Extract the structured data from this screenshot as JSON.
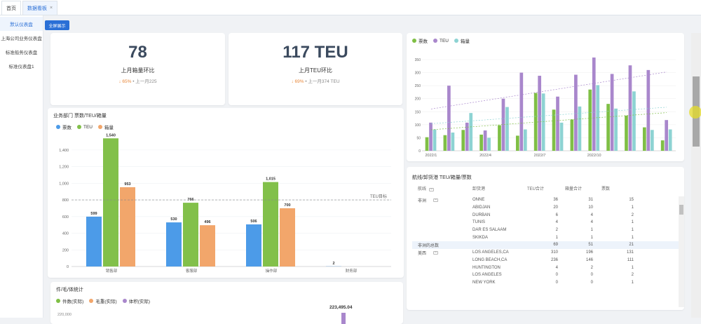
{
  "tabs": [
    {
      "label": "首页"
    },
    {
      "label": "数据看板",
      "close": "×"
    }
  ],
  "sidebar": {
    "items": [
      {
        "label": "默认仪表盘"
      },
      {
        "label": "上海公司业务仪表盘"
      },
      {
        "label": "标准船务仪表盘"
      },
      {
        "label": "标准仪表盘1"
      }
    ]
  },
  "toolbar": {
    "fullscreen_label": "全屏展示"
  },
  "kpi": [
    {
      "value": "78",
      "label": "上月箱量环比",
      "arrow": "↓",
      "pct": "65%",
      "prev": "上一月225"
    },
    {
      "value": "117 TEU",
      "label": "上月TEU环比",
      "arrow": "↓",
      "pct": "69%",
      "prev": "上一月374 TEU"
    }
  ],
  "dept_chart": {
    "title": "业务部门 票数/TEU/箱量",
    "legend": [
      "票数",
      "TEU",
      "箱量"
    ],
    "colors": [
      "#4c9be8",
      "#82c04a",
      "#f2a66b"
    ],
    "target_label": "TEU目标",
    "target_value": 800,
    "yticks": [
      0,
      200,
      400,
      600,
      800,
      1000,
      1200,
      1400
    ],
    "ytick_labels": [
      "0",
      "200",
      "400",
      "600",
      "800",
      "1,000",
      "1,200",
      "1,400"
    ],
    "categories": [
      "销售部",
      "客服部",
      "操作部",
      "财务部"
    ],
    "series": [
      {
        "name": "票数",
        "values": [
          599,
          530,
          506,
          2
        ],
        "labels": [
          "599",
          "530",
          "506",
          "2"
        ]
      },
      {
        "name": "TEU",
        "values": [
          1540,
          766,
          1015,
          0
        ],
        "labels": [
          "1,540",
          "766",
          "1,015",
          ""
        ]
      },
      {
        "name": "箱量",
        "values": [
          953,
          496,
          700,
          0
        ],
        "labels": [
          "953",
          "496",
          "700",
          ""
        ]
      }
    ]
  },
  "monthly_chart": {
    "legend": [
      "票数",
      "TEU",
      "箱量"
    ],
    "colors": [
      "#7fbf45",
      "#a987cc",
      "#8dd3d3"
    ],
    "yticks": [
      0,
      50,
      100,
      150,
      200,
      250,
      300,
      350
    ],
    "ytick_labels": [
      "0",
      "50",
      "100",
      "150",
      "200",
      "250",
      "300",
      "350"
    ],
    "xlabels": [
      "2022/1",
      "2022/4",
      "2022/7",
      "2022/10"
    ],
    "months": 14,
    "series": [
      {
        "name": "票数",
        "values": [
          52,
          60,
          80,
          62,
          98,
          58,
          222,
          158,
          120,
          235,
          180,
          135,
          90,
          40
        ]
      },
      {
        "name": "TEU",
        "values": [
          108,
          250,
          108,
          78,
          200,
          300,
          288,
          208,
          292,
          358,
          295,
          328,
          310,
          118
        ]
      },
      {
        "name": "箱量",
        "values": [
          82,
          70,
          145,
          50,
          168,
          82,
          220,
          108,
          170,
          252,
          162,
          228,
          80,
          82
        ]
      }
    ]
  },
  "route_table": {
    "title": "航线/卸货港 TEU/箱量/票数",
    "headers": [
      "航线",
      "卸货港",
      "TEU合计",
      "箱量合计",
      "票数"
    ],
    "rows": [
      {
        "route": "非洲",
        "port": "ONNE",
        "teu": "36",
        "box": "31",
        "count": "15"
      },
      {
        "route": "",
        "port": "ABIDJAN",
        "teu": "20",
        "box": "10",
        "count": "1"
      },
      {
        "route": "",
        "port": "DURBAN",
        "teu": "6",
        "box": "4",
        "count": "2"
      },
      {
        "route": "",
        "port": "TUNIS",
        "teu": "4",
        "box": "4",
        "count": "1"
      },
      {
        "route": "",
        "port": "DAR ES SALAAM",
        "teu": "2",
        "box": "1",
        "count": "1"
      },
      {
        "route": "",
        "port": "SKIKDA",
        "teu": "1",
        "box": "1",
        "count": "1"
      },
      {
        "route": "非洲的总数",
        "port": "",
        "teu": "69",
        "box": "51",
        "count": "21",
        "subtotal": true
      },
      {
        "route": "美西",
        "port": "LOS ANGELES,CA",
        "teu": "310",
        "box": "196",
        "count": "131"
      },
      {
        "route": "",
        "port": "LONG BEACH,CA",
        "teu": "236",
        "box": "146",
        "count": "111"
      },
      {
        "route": "",
        "port": "HUNTINGTON",
        "teu": "4",
        "box": "2",
        "count": "1"
      },
      {
        "route": "",
        "port": "LOS ANGELES",
        "teu": "0",
        "box": "0",
        "count": "2"
      },
      {
        "route": "",
        "port": "NEW YORK",
        "teu": "0",
        "box": "0",
        "count": "1"
      }
    ]
  },
  "weight_chart": {
    "title": "件/毛/体统计",
    "legend": [
      "件数(实际)",
      "毛重(实际)",
      "体积(实际)"
    ],
    "colors": [
      "#7fbf45",
      "#f2a66b",
      "#a987cc"
    ],
    "ytick_label": "220,000",
    "data_label": "223,495.04"
  }
}
